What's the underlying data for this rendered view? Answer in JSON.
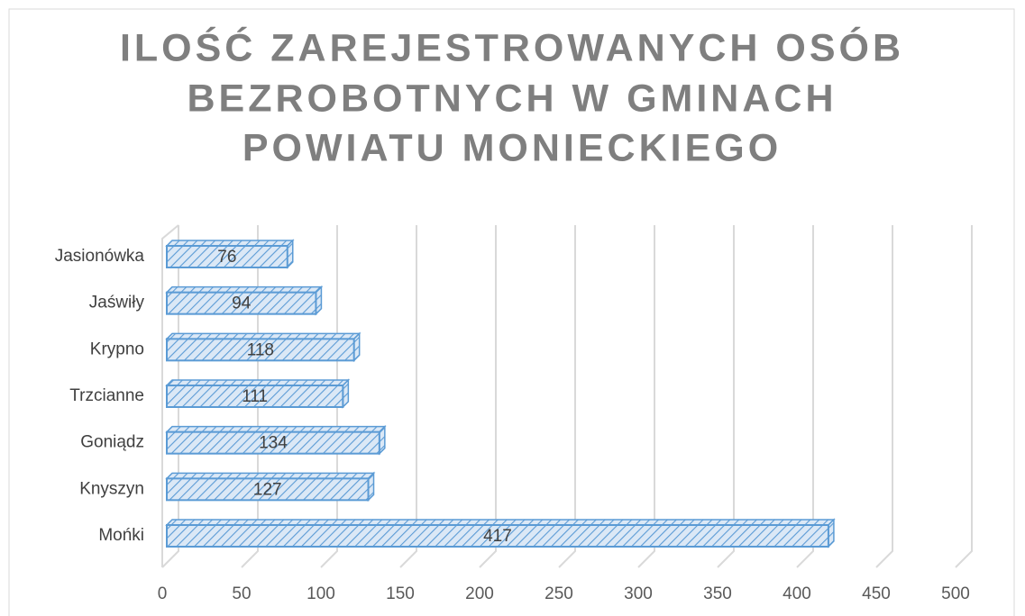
{
  "chart_data": {
    "type": "bar3d_horizontal",
    "title": [
      "ILOŚĆ ZAREJESTROWANYCH OSÓB",
      "BEZROBOTNYCH W GMINACH",
      "POWIATU MONIECKIEGO"
    ],
    "categories": [
      "Mońki",
      "Knyszyn",
      "Goniądz",
      "Trzcianne",
      "Krypno",
      "Jaświły",
      "Jasionówka"
    ],
    "values": [
      417,
      127,
      134,
      111,
      118,
      94,
      76
    ],
    "color": "#5b9bd5",
    "xlim": [
      0,
      500
    ],
    "xticks": [
      0,
      50,
      100,
      150,
      200,
      250,
      300,
      350,
      400,
      450,
      500
    ],
    "grid": true
  }
}
